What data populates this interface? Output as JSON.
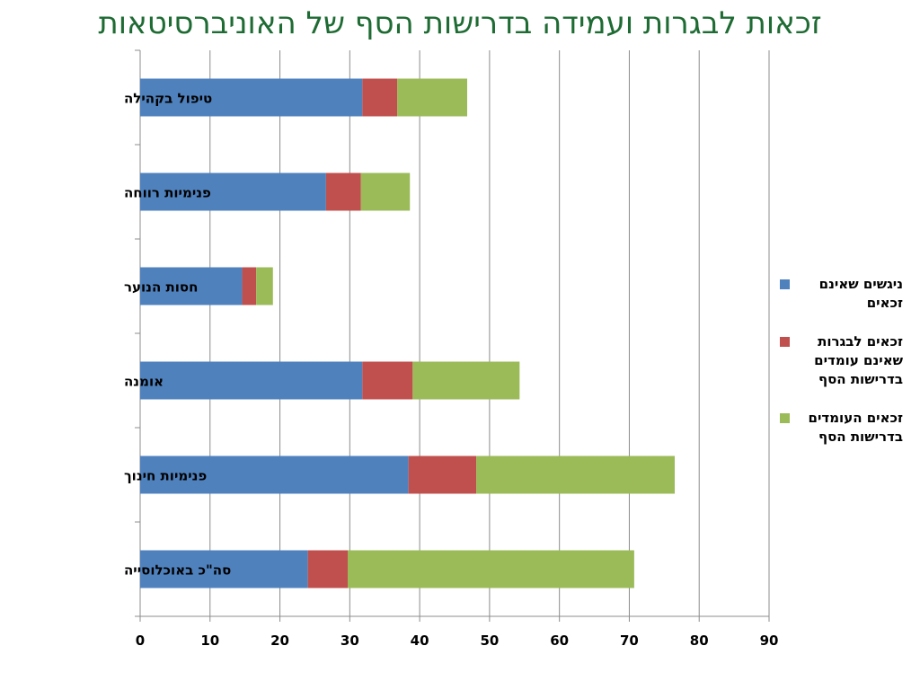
{
  "chart_data": {
    "type": "bar",
    "orientation": "horizontal",
    "stacked": true,
    "title": "זכאות לבגרות ועמידה בדרישות הסף של האוניברסיטאות",
    "title_color": "#1e6b33",
    "categories": [
      "טיפול בקהילה",
      "פנימיות רווחה",
      "חסות הנוער",
      "אומנה",
      "פנימיות חינוך",
      "סה\"כ באוכלוסייה"
    ],
    "series": [
      {
        "name": "ניגשים שאינם זכאים",
        "color": "#4f81bd",
        "values": [
          31.8,
          26.6,
          14.6,
          31.8,
          38.4,
          24.0
        ]
      },
      {
        "name": "זכאים לבגרות שאינם עומדים בדרישות הסף",
        "color": "#c0504d",
        "values": [
          5.0,
          5.0,
          2.0,
          7.2,
          9.7,
          5.7
        ]
      },
      {
        "name": "זכאים העומדים בדרישות הסף",
        "color": "#9bbb59",
        "values": [
          10.0,
          7.0,
          2.4,
          15.3,
          28.4,
          41.0
        ]
      }
    ],
    "xlim": [
      0,
      90
    ],
    "xticks": [
      "0",
      "10",
      "20",
      "30",
      "40",
      "50",
      "60",
      "70",
      "80",
      "90"
    ],
    "grid": true,
    "legend_position": "right"
  }
}
